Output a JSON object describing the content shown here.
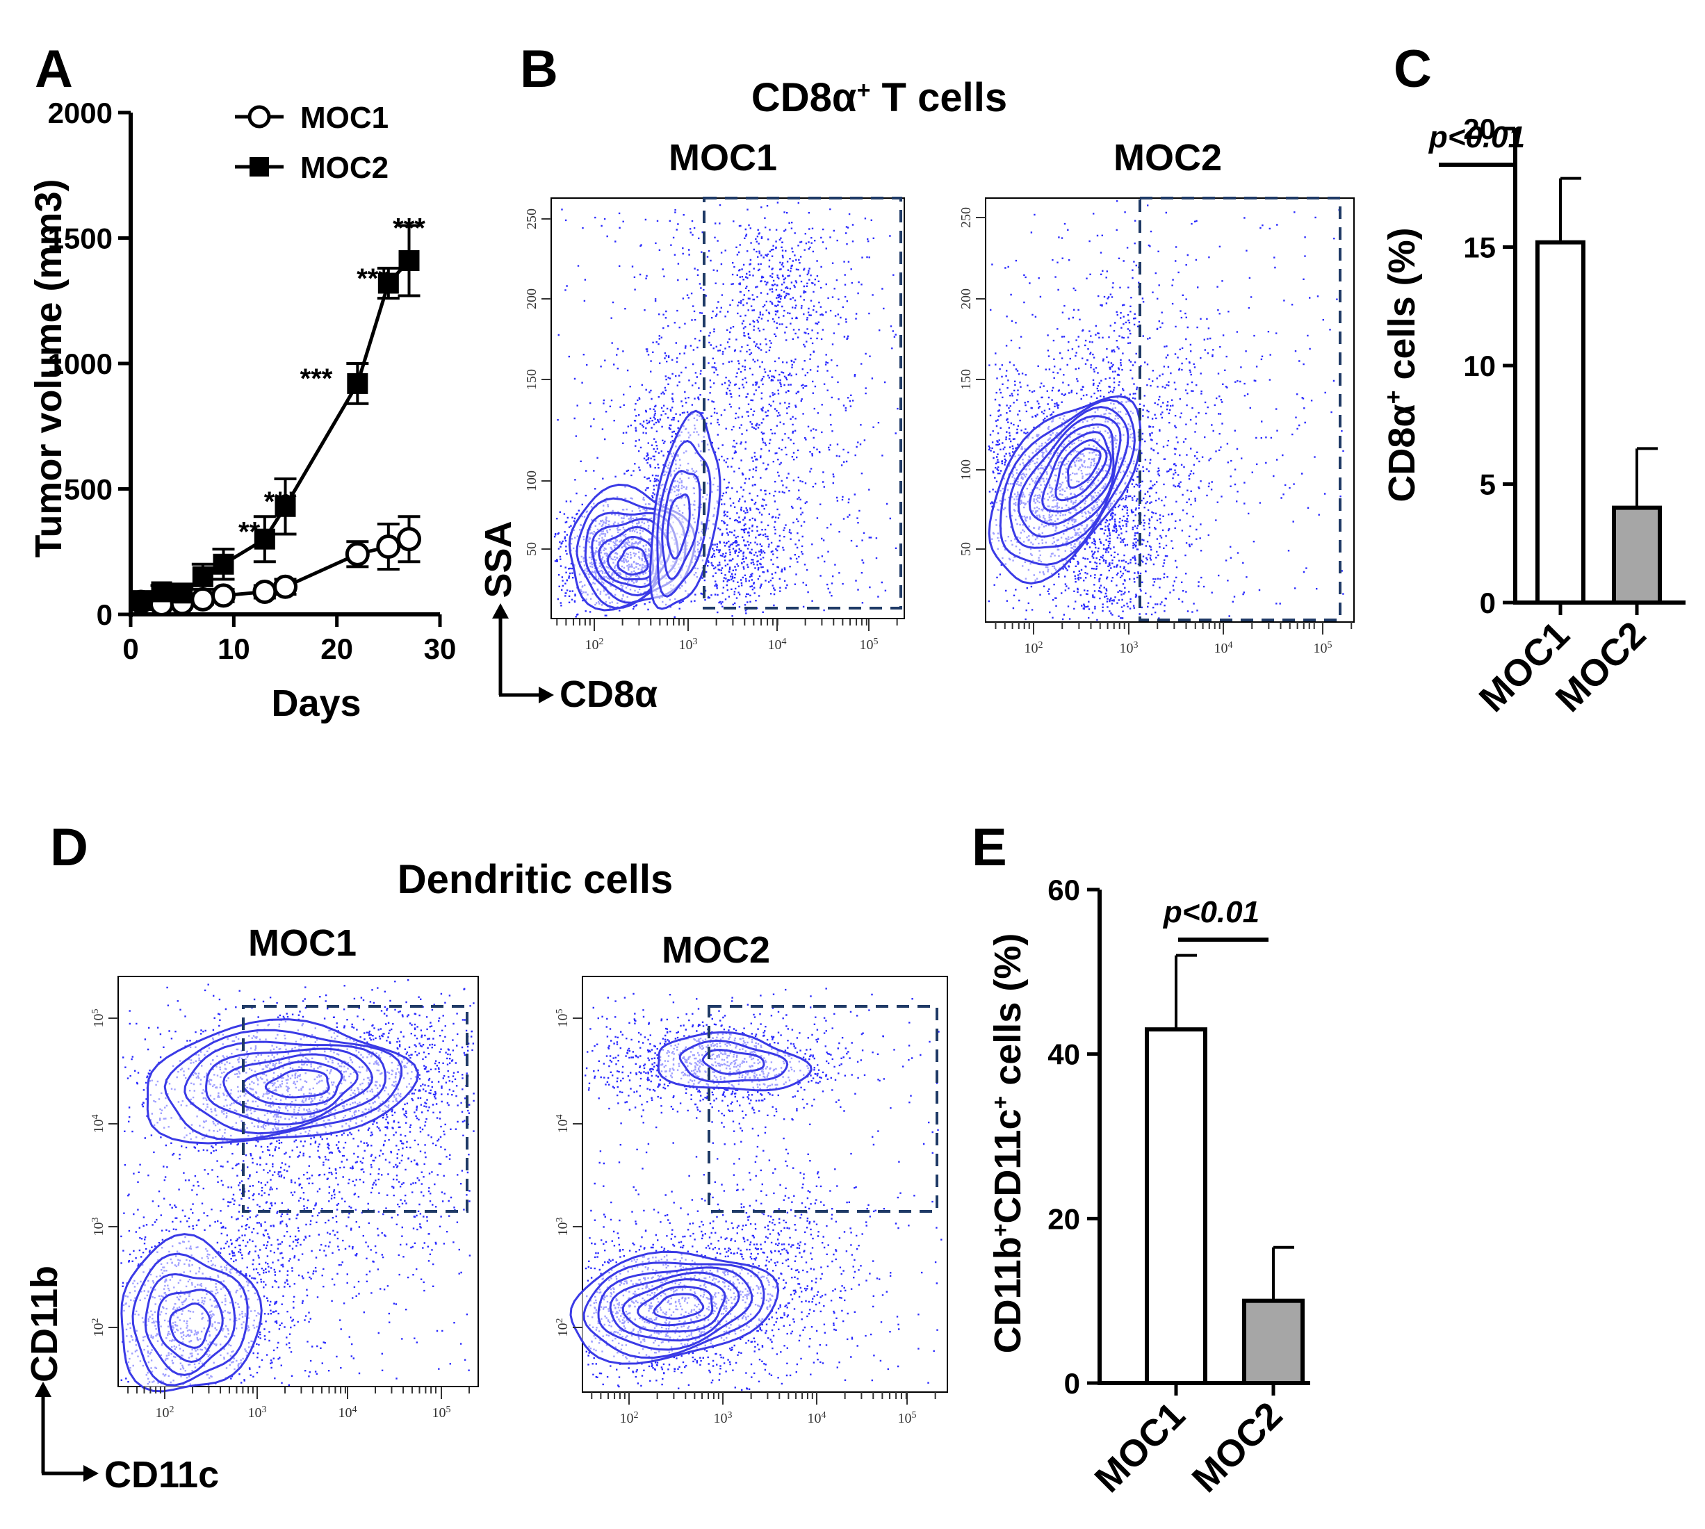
{
  "panel_labels": {
    "A": "A",
    "B": "B",
    "C": "C",
    "D": "D",
    "E": "E"
  },
  "colors": {
    "dots": "#2a2aff",
    "contour": "#3a3ae6",
    "gate": "#1f3a66",
    "bar_moc1": "#ffffff",
    "bar_moc2": "#a6a6a6",
    "ink": "#000000"
  },
  "chart_data": [
    {
      "id": "A",
      "type": "line",
      "xlabel": "Days",
      "ylabel": "Tumor volume (mm3)",
      "xlim": [
        0,
        30
      ],
      "ylim": [
        0,
        2000
      ],
      "xticks": [
        "0",
        "10",
        "20",
        "30"
      ],
      "yticks": [
        "0",
        "500",
        "1000",
        "1500",
        "2000"
      ],
      "legend": [
        "MOC1",
        "MOC2"
      ],
      "series": [
        {
          "name": "MOC1",
          "marker": "open-circle",
          "x": [
            1,
            3,
            5,
            7,
            9,
            13,
            15,
            22,
            25,
            27
          ],
          "y": [
            50,
            40,
            45,
            60,
            75,
            90,
            110,
            240,
            270,
            300
          ],
          "err": [
            20,
            15,
            15,
            20,
            25,
            25,
            30,
            50,
            90,
            90
          ]
        },
        {
          "name": "MOC2",
          "marker": "filled-square",
          "x": [
            1,
            3,
            5,
            7,
            9,
            13,
            15,
            22,
            25,
            27
          ],
          "y": [
            55,
            90,
            85,
            150,
            200,
            300,
            430,
            920,
            1320,
            1410
          ],
          "err": [
            20,
            25,
            25,
            50,
            60,
            90,
            110,
            80,
            60,
            140
          ]
        }
      ],
      "annotations": [
        {
          "x": 11.5,
          "y": 370,
          "text": "**"
        },
        {
          "x": 14.5,
          "y": 490,
          "text": "***"
        },
        {
          "x": 18,
          "y": 980,
          "text": "***"
        },
        {
          "x": 23.5,
          "y": 1380,
          "text": "***"
        },
        {
          "x": 27,
          "y": 1580,
          "text": "***"
        }
      ]
    },
    {
      "id": "C",
      "type": "bar",
      "categories": [
        "MOC1",
        "MOC2"
      ],
      "values": [
        15.2,
        4.0
      ],
      "errors": [
        2.7,
        2.5
      ],
      "ylabel_main": "CD8α",
      "ylabel_sup": "+",
      "ylabel_rest": " cells (%)",
      "ylim": [
        0,
        20
      ],
      "yticks": [
        "0",
        "5",
        "10",
        "15",
        "20"
      ],
      "pvalue": "p<0.01"
    },
    {
      "id": "E",
      "type": "bar",
      "categories": [
        "MOC1",
        "MOC2"
      ],
      "values": [
        43,
        10
      ],
      "errors": [
        9,
        6.5
      ],
      "ylabel_parts": [
        "CD11b",
        "+",
        "CD11c",
        "+",
        " cells (%)"
      ],
      "ylim": [
        0,
        60
      ],
      "yticks": [
        "0",
        "20",
        "40",
        "60"
      ],
      "pvalue": "p<0.01"
    }
  ],
  "flow": {
    "B": {
      "title_main": "CD8α",
      "title_sup": "+",
      "title_rest": " T cells",
      "xaxis": "CD8α",
      "yaxis": "SSA",
      "plots": [
        {
          "label": "MOC1"
        },
        {
          "label": "MOC2"
        }
      ],
      "yticks": [
        "50",
        "100",
        "150",
        "200",
        "250"
      ],
      "xticks": [
        {
          "b": "10",
          "e": "2"
        },
        {
          "b": "10",
          "e": "3"
        },
        {
          "b": "10",
          "e": "4"
        },
        {
          "b": "10",
          "e": "5"
        }
      ]
    },
    "D": {
      "title": "Dendritic  cells",
      "xaxis": "CD11c",
      "yaxis": "CD11b",
      "plots": [
        {
          "label": "MOC1"
        },
        {
          "label": "MOC2"
        }
      ],
      "ticks": [
        {
          "b": "10",
          "e": "2"
        },
        {
          "b": "10",
          "e": "3"
        },
        {
          "b": "10",
          "e": "4"
        },
        {
          "b": "10",
          "e": "5"
        }
      ]
    }
  }
}
